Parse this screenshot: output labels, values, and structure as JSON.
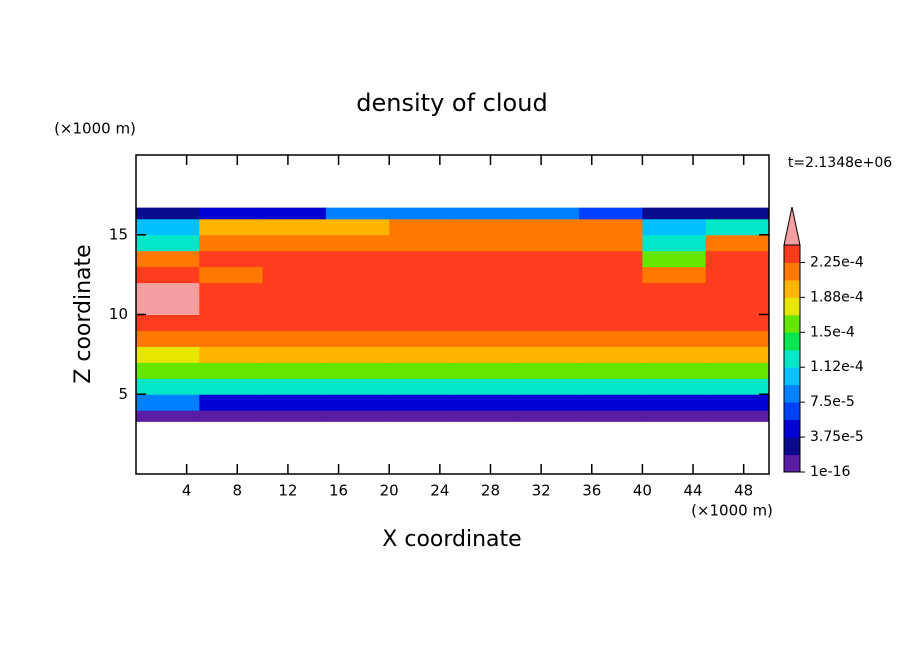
{
  "chart_data": {
    "type": "contour",
    "title": "density of cloud",
    "x_label": "X coordinate",
    "y_label": "Z coordinate",
    "x_unit": "(×1000 m)",
    "y_unit": "(×1000 m)",
    "time_label": "t=2.1348e+06",
    "xlim": [
      0,
      50
    ],
    "ylim": [
      0,
      20
    ],
    "xticks": [
      4,
      8,
      12,
      16,
      20,
      24,
      28,
      32,
      36,
      40,
      44,
      48
    ],
    "yticks": [
      5,
      10,
      15
    ],
    "x_edges": [
      0,
      5,
      10,
      15,
      20,
      25,
      30,
      35,
      40,
      45,
      50
    ],
    "z_edges": [
      3.3,
      4,
      5,
      6,
      7,
      8,
      9,
      10,
      11,
      12,
      13,
      14,
      15,
      16,
      16.7
    ],
    "values": [
      [
        1e-05,
        1e-05,
        1e-05,
        1e-05,
        1e-05,
        1e-05,
        1e-05,
        1e-05,
        1e-05,
        1e-05
      ],
      [
        8e-05,
        5e-05,
        5e-05,
        5e-05,
        5e-05,
        5e-05,
        5e-05,
        5e-05,
        5e-05,
        5e-05
      ],
      [
        0.00013,
        0.00012,
        0.00012,
        0.00012,
        0.00012,
        0.00012,
        0.00012,
        0.00012,
        0.00012,
        0.00012
      ],
      [
        0.00016,
        0.00016,
        0.00016,
        0.00016,
        0.00016,
        0.00016,
        0.00016,
        0.00016,
        0.00016,
        0.00016
      ],
      [
        0.00017,
        0.00019,
        0.00019,
        0.00019,
        0.00019,
        0.00019,
        0.00019,
        0.00019,
        0.00019,
        0.00019
      ],
      [
        0.00021,
        0.00021,
        0.00021,
        0.00021,
        0.00021,
        0.00021,
        0.00021,
        0.00021,
        0.00021,
        0.00021
      ],
      [
        0.00023,
        0.00023,
        0.00023,
        0.00023,
        0.00023,
        0.00023,
        0.00023,
        0.00023,
        0.00023,
        0.00023
      ],
      [
        0.000245,
        0.000235,
        0.000235,
        0.000235,
        0.000235,
        0.000235,
        0.000235,
        0.000235,
        0.000235,
        0.000235
      ],
      [
        0.000245,
        0.000235,
        0.000235,
        0.000235,
        0.000235,
        0.000235,
        0.000235,
        0.000235,
        0.000235,
        0.000235
      ],
      [
        0.000235,
        0.00022,
        0.000235,
        0.000235,
        0.000235,
        0.000235,
        0.000235,
        0.000235,
        0.00022,
        0.000235
      ],
      [
        0.00021,
        0.00023,
        0.00023,
        0.00023,
        0.00023,
        0.00023,
        0.00023,
        0.00023,
        0.00015,
        0.00023
      ],
      [
        0.00013,
        0.00022,
        0.00022,
        0.00022,
        0.00022,
        0.00022,
        0.00022,
        0.00022,
        0.00012,
        0.00022
      ],
      [
        0.00011,
        0.00019,
        0.00019,
        0.00019,
        0.00021,
        0.00021,
        0.00021,
        0.00021,
        0.0001,
        0.00013
      ],
      [
        3e-05,
        4e-05,
        5e-05,
        9e-05,
        9e-05,
        9e-05,
        9e-05,
        6e-05,
        3e-05,
        3e-05
      ]
    ],
    "levels": [
      1e-16,
      1.875e-05,
      3.75e-05,
      5.625e-05,
      7.5e-05,
      9.375e-05,
      0.0001125,
      0.00013125,
      0.00015,
      0.00016875,
      0.0001875,
      0.00020625,
      0.000225,
      0.00024375
    ],
    "colors": [
      "#5b1ca6",
      "#0a0a8c",
      "#0000d2",
      "#0040ff",
      "#0080ff",
      "#00c0ff",
      "#00e6c8",
      "#00e650",
      "#64e600",
      "#e6e600",
      "#ffb400",
      "#ff7800",
      "#ff3c1e"
    ],
    "over_color": "#f5a0a0",
    "colorbar_ticks": [
      {
        "value": 1e-16,
        "label": "1e-16"
      },
      {
        "value": 3.75e-05,
        "label": "3.75e-5"
      },
      {
        "value": 7.5e-05,
        "label": "7.5e-5"
      },
      {
        "value": 0.0001125,
        "label": "1.12e-4"
      },
      {
        "value": 0.00015,
        "label": "1.5e-4"
      },
      {
        "value": 0.0001875,
        "label": "1.88e-4"
      },
      {
        "value": 0.000225,
        "label": "2.25e-4"
      }
    ]
  }
}
